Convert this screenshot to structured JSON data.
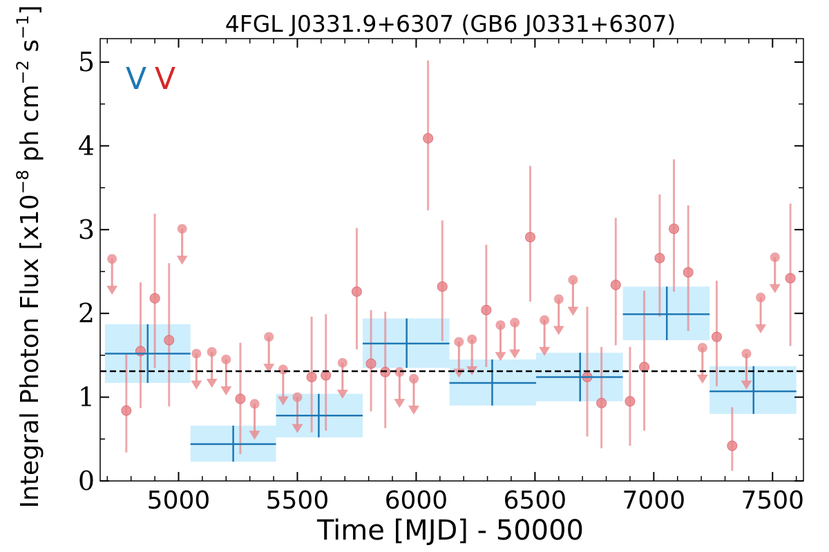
{
  "chart_data": {
    "type": "scatter",
    "title": "4FGL J0331.9+6307 (GB6 J0331+6307)",
    "xlabel": "Time [MJD] - 50000",
    "ylabel_main": "Integral Photon Flux [x10",
    "ylabel_exp1": "−8",
    "ylabel_mid": " ph cm",
    "ylabel_exp2": "−2",
    "ylabel_mid2": " s",
    "ylabel_exp3": "−1",
    "ylabel_end": "]",
    "xlim": [
      4670,
      7630
    ],
    "ylim": [
      0,
      5.28
    ],
    "xticks": [
      5000,
      5500,
      6000,
      6500,
      7000,
      7500
    ],
    "yticks": [
      0,
      1,
      2,
      3,
      4,
      5
    ],
    "xminor_step": 100,
    "yminor_step": 0.5,
    "grid": false,
    "mean_flux": 1.31,
    "flags": [
      {
        "text": "V",
        "color": "#1f77b4"
      },
      {
        "text": "V",
        "color": "#d62728"
      }
    ],
    "colors": {
      "short_bins": "#e8868a",
      "long_bins": "#1f77b4",
      "long_band": "#cdeefd",
      "mean_line": "#000000"
    },
    "long_bins": [
      {
        "x": 4870,
        "xlo": 4690,
        "xhi": 5050,
        "y": 1.52,
        "ylo": 1.17,
        "yhi": 1.87
      },
      {
        "x": 5230,
        "xlo": 5050,
        "xhi": 5410,
        "y": 0.44,
        "ylo": 0.23,
        "yhi": 0.66
      },
      {
        "x": 5590,
        "xlo": 5410,
        "xhi": 5775,
        "y": 0.78,
        "ylo": 0.52,
        "yhi": 1.04
      },
      {
        "x": 5960,
        "xlo": 5775,
        "xhi": 6140,
        "y": 1.64,
        "ylo": 1.35,
        "yhi": 1.94
      },
      {
        "x": 6320,
        "xlo": 6140,
        "xhi": 6505,
        "y": 1.17,
        "ylo": 0.9,
        "yhi": 1.45
      },
      {
        "x": 6690,
        "xlo": 6505,
        "xhi": 6870,
        "y": 1.24,
        "ylo": 0.95,
        "yhi": 1.53
      },
      {
        "x": 7055,
        "xlo": 6870,
        "xhi": 7235,
        "y": 1.99,
        "ylo": 1.68,
        "yhi": 2.32
      },
      {
        "x": 7420,
        "xlo": 7235,
        "xhi": 7600,
        "y": 1.07,
        "ylo": 0.8,
        "yhi": 1.37
      }
    ],
    "short_bins": [
      {
        "x": 4720,
        "y": 2.65,
        "ul": true
      },
      {
        "x": 4780,
        "y": 0.84,
        "ylo": 0.34,
        "yhi": 1.52
      },
      {
        "x": 4840,
        "y": 1.55,
        "ylo": 0.87,
        "yhi": 2.37
      },
      {
        "x": 4900,
        "y": 2.18,
        "ylo": 1.35,
        "yhi": 3.19
      },
      {
        "x": 4960,
        "y": 1.68,
        "ylo": 0.89,
        "yhi": 2.6
      },
      {
        "x": 5015,
        "y": 3.01,
        "ul": true
      },
      {
        "x": 5075,
        "y": 1.52,
        "ul": true
      },
      {
        "x": 5140,
        "y": 1.54,
        "ul": true
      },
      {
        "x": 5200,
        "y": 1.45,
        "ul": true
      },
      {
        "x": 5260,
        "y": 0.98,
        "ylo": 0.32,
        "yhi": 1.65
      },
      {
        "x": 5320,
        "y": 0.92,
        "ul": true
      },
      {
        "x": 5380,
        "y": 1.72,
        "ul": true
      },
      {
        "x": 5440,
        "y": 1.33,
        "ul": true
      },
      {
        "x": 5500,
        "y": 1.0,
        "ul": true
      },
      {
        "x": 5560,
        "y": 1.24,
        "ylo": 0.58,
        "yhi": 1.96
      },
      {
        "x": 5620,
        "y": 1.26,
        "ylo": 0.6,
        "yhi": 1.99
      },
      {
        "x": 5690,
        "y": 1.41,
        "ul": true
      },
      {
        "x": 5750,
        "y": 2.26,
        "ylo": 1.57,
        "yhi": 3.02
      },
      {
        "x": 5810,
        "y": 1.4,
        "ylo": 0.83,
        "yhi": 2.04
      },
      {
        "x": 5870,
        "y": 1.3,
        "ylo": 0.63,
        "yhi": 2.02
      },
      {
        "x": 5930,
        "y": 1.3,
        "ul": true
      },
      {
        "x": 5990,
        "y": 1.22,
        "ul": true
      },
      {
        "x": 6050,
        "y": 4.09,
        "ylo": 3.23,
        "yhi": 5.02
      },
      {
        "x": 6110,
        "y": 2.32,
        "ylo": 1.67,
        "yhi": 3.11
      },
      {
        "x": 6180,
        "y": 1.66,
        "ul": true
      },
      {
        "x": 6235,
        "y": 1.69,
        "ul": true
      },
      {
        "x": 6295,
        "y": 2.04,
        "ylo": 1.36,
        "yhi": 2.82
      },
      {
        "x": 6355,
        "y": 1.86,
        "ul": true
      },
      {
        "x": 6415,
        "y": 1.89,
        "ul": true
      },
      {
        "x": 6480,
        "y": 2.91,
        "ylo": 2.14,
        "yhi": 3.76
      },
      {
        "x": 6540,
        "y": 1.92,
        "ul": true
      },
      {
        "x": 6600,
        "y": 2.17,
        "ul": true
      },
      {
        "x": 6660,
        "y": 2.4,
        "ul": true
      },
      {
        "x": 6720,
        "y": 1.24,
        "ylo": 0.53,
        "yhi": 2.08
      },
      {
        "x": 6780,
        "y": 0.93,
        "ylo": 0.39,
        "yhi": 1.6
      },
      {
        "x": 6840,
        "y": 2.34,
        "ylo": 1.62,
        "yhi": 3.14
      },
      {
        "x": 6900,
        "y": 0.95,
        "ylo": 0.42,
        "yhi": 1.6
      },
      {
        "x": 6960,
        "y": 1.36,
        "ylo": 0.6,
        "yhi": 2.27
      },
      {
        "x": 7025,
        "y": 2.66,
        "ylo": 1.96,
        "yhi": 3.42
      },
      {
        "x": 7085,
        "y": 3.01,
        "ylo": 2.26,
        "yhi": 3.84
      },
      {
        "x": 7145,
        "y": 2.49,
        "ylo": 1.79,
        "yhi": 3.29
      },
      {
        "x": 7205,
        "y": 1.59,
        "ul": true
      },
      {
        "x": 7265,
        "y": 1.72,
        "ylo": 1.13,
        "yhi": 2.39
      },
      {
        "x": 7330,
        "y": 0.42,
        "ylo": 0.12,
        "yhi": 0.88
      },
      {
        "x": 7390,
        "y": 1.52,
        "ul": true
      },
      {
        "x": 7450,
        "y": 2.19,
        "ul": true
      },
      {
        "x": 7510,
        "y": 2.67,
        "ul": true
      },
      {
        "x": 7575,
        "y": 2.42,
        "ylo": 1.61,
        "yhi": 3.31
      }
    ]
  }
}
